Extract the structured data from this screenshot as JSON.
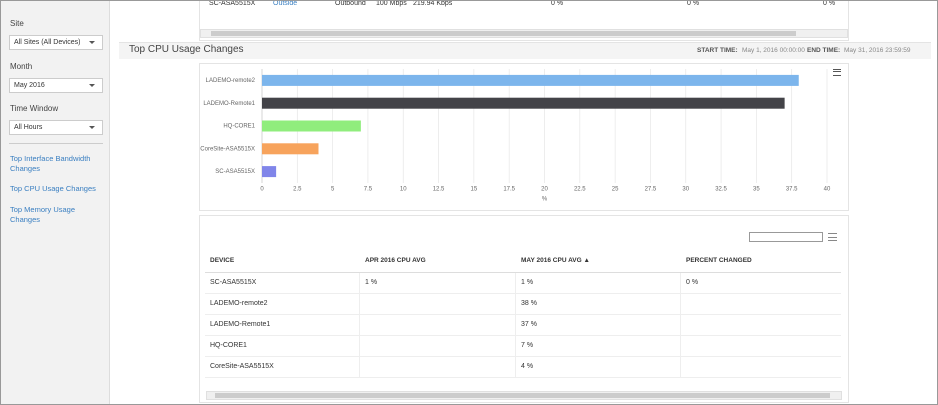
{
  "sidebar": {
    "fields": [
      {
        "label": "Site",
        "value": "All Sites (All Devices)"
      },
      {
        "label": "Month",
        "value": "May 2016"
      },
      {
        "label": "Time Window",
        "value": "All Hours"
      }
    ],
    "links": [
      "Top Interface Bandwidth Changes",
      "Top CPU Usage Changes",
      "Top Memory Usage Changes"
    ]
  },
  "top_row": [
    "SC-ASA5515X",
    "Outside",
    "Outbound",
    "100 Mbps",
    "219.94 Kbps",
    "0 %",
    "0 %",
    "0 %"
  ],
  "section": {
    "title": "Top CPU Usage Changes",
    "start_label": "START TIME:",
    "start": "May 1, 2016 00:00:00",
    "end_label": "END TIME:",
    "end": "May 31, 2016 23:59:59"
  },
  "chart_data": {
    "type": "bar",
    "orientation": "horizontal",
    "categories": [
      "LADEMO-remote2",
      "LADEMO-Remote1",
      "HQ-CORE1",
      "CoreSite-ASA5515X",
      "SC-ASA5515X"
    ],
    "values": [
      38,
      37,
      7,
      4,
      1
    ],
    "colors": [
      "#7cb5ec",
      "#434348",
      "#90ed7d",
      "#f7a35c",
      "#8085e9"
    ],
    "xlabel": "%",
    "xlim": [
      0,
      40
    ],
    "xticks": [
      0,
      2.5,
      5,
      7.5,
      10,
      12.5,
      15,
      17.5,
      20,
      22.5,
      25,
      27.5,
      30,
      32.5,
      35,
      37.5,
      40
    ],
    "grid": true
  },
  "table": {
    "headers": [
      "DEVICE",
      "APR 2016 CPU AVG",
      "MAY 2016 CPU AVG ▲",
      "PERCENT CHANGED"
    ],
    "rows": [
      [
        "SC-ASA5515X",
        "1 %",
        "1 %",
        "0 %"
      ],
      [
        "LADEMO-remote2",
        null,
        "38 %",
        null
      ],
      [
        "LADEMO-Remote1",
        null,
        "37 %",
        null
      ],
      [
        "HQ-CORE1",
        null,
        "7 %",
        null
      ],
      [
        "CoreSite-ASA5515X",
        null,
        "4 %",
        null
      ]
    ]
  }
}
